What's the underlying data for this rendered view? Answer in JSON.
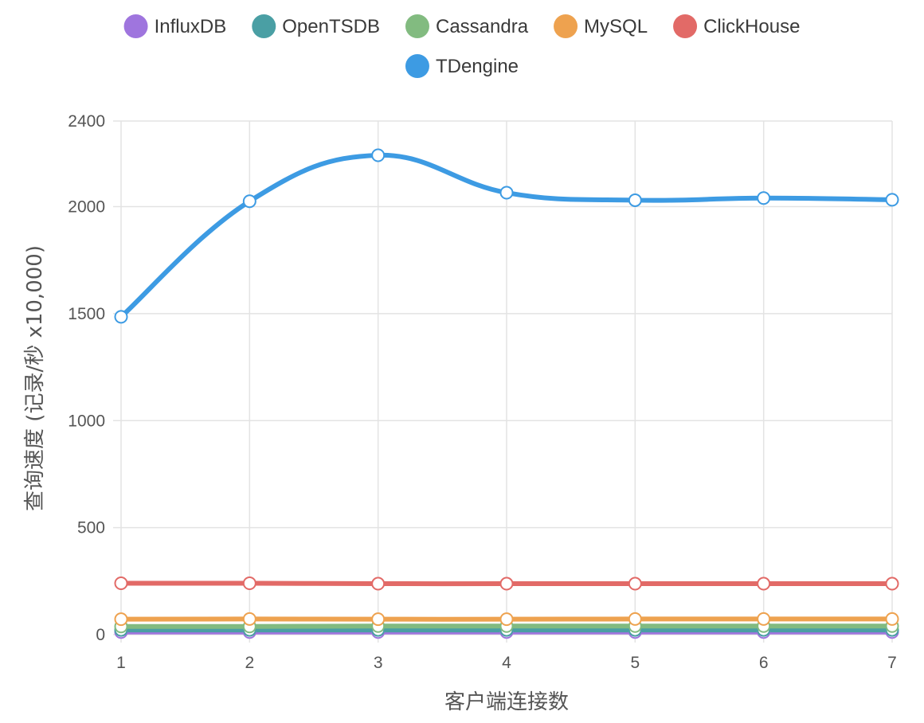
{
  "chart_data": {
    "type": "line",
    "title": "",
    "xlabel": "客户端连接数",
    "ylabel": "查询速度 (记录/秒 x10,000)",
    "x": [
      1,
      2,
      3,
      4,
      5,
      6,
      7
    ],
    "ylim": [
      0,
      2400
    ],
    "yticks": [
      0,
      500,
      1000,
      1500,
      2000,
      2400
    ],
    "grid": true,
    "legend_position": "top-center",
    "curve": "smooth",
    "series": [
      {
        "name": "InfluxDB",
        "color": "#9f75de",
        "values": [
          12,
          12,
          12,
          12,
          12,
          12,
          12
        ]
      },
      {
        "name": "OpenTSDB",
        "color": "#4a9fa4",
        "values": [
          22,
          22,
          22,
          22,
          22,
          22,
          22
        ]
      },
      {
        "name": "Cassandra",
        "color": "#82bb80",
        "values": [
          38,
          38,
          40,
          40,
          40,
          40,
          40
        ]
      },
      {
        "name": "MySQL",
        "color": "#eea24f",
        "values": [
          72,
          73,
          72,
          72,
          73,
          73,
          73
        ]
      },
      {
        "name": "ClickHouse",
        "color": "#e26a67",
        "values": [
          240,
          240,
          238,
          238,
          238,
          238,
          238
        ]
      },
      {
        "name": "TDengine",
        "color": "#3d9be3",
        "values": [
          1485,
          2025,
          2240,
          2065,
          2030,
          2040,
          2032
        ]
      }
    ]
  }
}
